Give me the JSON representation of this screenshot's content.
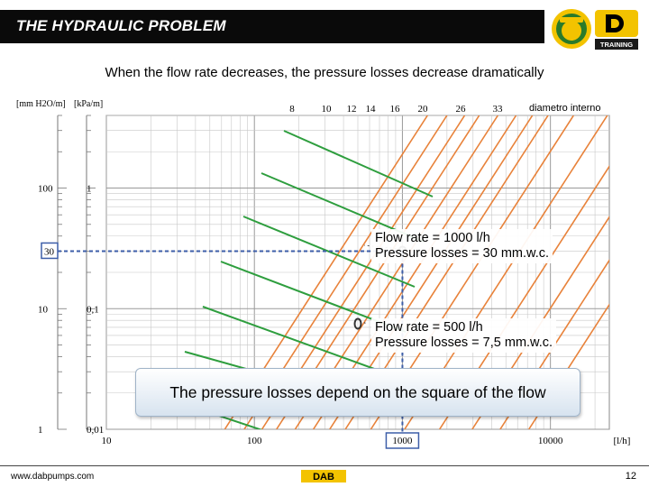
{
  "header": {
    "title": "THE HYDRAULIC PROBLEM",
    "logo_text": "TRAINING"
  },
  "subtitle": "When the flow rate decreases, the pressure losses decrease dramatically",
  "chart_data": {
    "type": "line",
    "xscale": "log",
    "yscale": "log",
    "xlim": [
      10,
      25000
    ],
    "ylim_mmH2O": [
      1,
      400
    ],
    "x_unit": "[l/h]",
    "y_units": [
      "[mm H2O/m]",
      "[kPa/m]"
    ],
    "x_ticks": [
      {
        "v": 10,
        "label": "10"
      },
      {
        "v": 100,
        "label": "100"
      },
      {
        "v": 1000,
        "label": "1000"
      },
      {
        "v": 10000,
        "label": "10000"
      }
    ],
    "y_ticks_mm": [
      {
        "v": 100,
        "label": "100"
      },
      {
        "v": 10,
        "label": "10"
      },
      {
        "v": 1,
        "label": "1"
      }
    ],
    "y_ticks_kpa": [
      {
        "v": 100,
        "label": "1"
      },
      {
        "v": 10,
        "label": "0,1"
      },
      {
        "v": 1,
        "label": "0,01"
      }
    ],
    "diameter_label": "diametro interno",
    "diameters": [
      "8",
      "10",
      "12",
      "14",
      "16",
      "20",
      "26",
      "33"
    ],
    "highlight_y_label": "30",
    "highlight_x_label": "1000",
    "points": [
      {
        "flow": 1000,
        "loss": 30
      },
      {
        "flow": 500,
        "loss": 7.5
      }
    ],
    "colors": {
      "pipe": "#e8823a",
      "velocity": "#2e9e3e",
      "guide": "#3d5ea8",
      "grid": "#c8c8c8"
    }
  },
  "callouts": [
    {
      "line1": "Flow rate = 1000 l/h",
      "line2": "Pressure losses = 30 mm.w.c."
    },
    {
      "line1": "Flow rate = 500 l/h",
      "line2": "Pressure losses = 7,5 mm.w.c."
    }
  ],
  "banner": "The pressure losses depend on the square of the flow",
  "footer": {
    "url": "www.dabpumps.com",
    "logo": "DAB",
    "page": "12"
  }
}
